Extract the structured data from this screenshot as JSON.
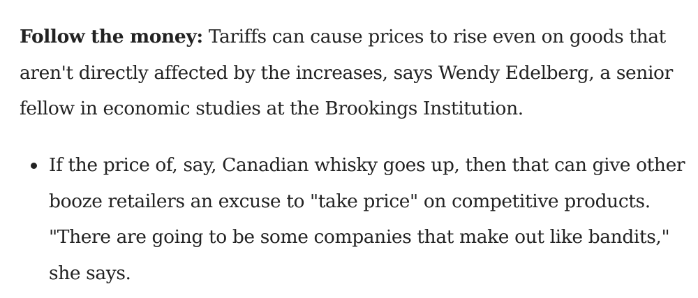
{
  "paragraph": {
    "lead": "Follow the money:",
    "text": " Tariffs can cause prices to rise even on goods that aren't directly affected by the increases, says Wendy Edelberg, a senior fellow in economic studies at the Brookings Institution."
  },
  "bullets": [
    {
      "text": "If the price of, say, Canadian whisky goes up, then that can give other booze retailers an excuse to \"take price\" on competitive products. \"There are going to be some companies that make out like bandits,\" she says."
    }
  ]
}
